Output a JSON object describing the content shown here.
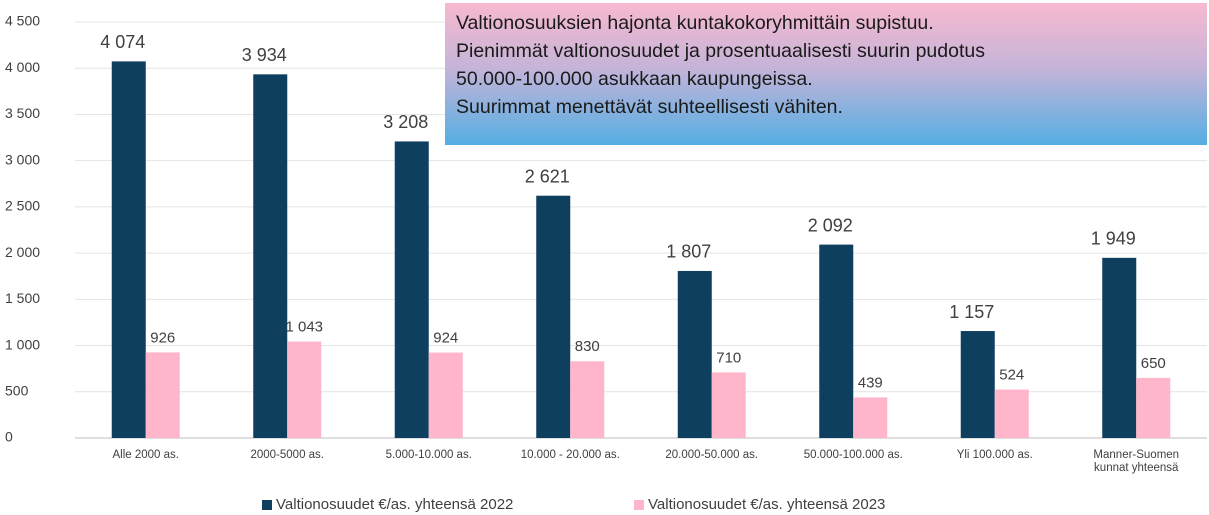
{
  "chart_data": {
    "type": "bar",
    "annotation": [
      "Valtionosuuksien hajonta kuntakokoryhmittäin supistuu.",
      "Pienimmät valtionosuudet ja prosentuaalisesti suurin pudotus",
      "50.000-100.000 asukkaan kaupungeissa.",
      "Suurimmat menettävät suhteellisesti vähiten."
    ],
    "categories": [
      "Alle 2000 as.",
      "2000-5000 as.",
      "5.000-10.000 as.",
      "10.000 - 20.000 as.",
      "20.000-50.000 as.",
      "50.000-100.000 as.",
      "Yli 100.000 as.",
      "Manner-Suomen kunnat yhteensä"
    ],
    "series": [
      {
        "name": "Valtionosuudet €/as. yhteensä 2022",
        "color": "#0f3f5e",
        "values": [
          4074,
          3934,
          3208,
          2621,
          1807,
          2092,
          1157,
          1949
        ],
        "value_labels": [
          "4 074",
          "3 934",
          "3 208",
          "2 621",
          "1 807",
          "2 092",
          "1 157",
          "1 949"
        ]
      },
      {
        "name": "Valtionosuudet €/as. yhteensä 2023",
        "color": "#ffb6cb",
        "values": [
          926,
          1043,
          924,
          830,
          710,
          439,
          524,
          650
        ],
        "value_labels": [
          "926",
          "1 043",
          "924",
          "830",
          "710",
          "439",
          "524",
          "650"
        ]
      }
    ],
    "ylim": [
      0,
      4500
    ],
    "yticks": [
      0,
      500,
      {
        "value": 1000,
        "label": "1 000"
      },
      {
        "value": 1500,
        "label": "1 500"
      },
      {
        "value": 2000,
        "label": "2 000"
      },
      {
        "value": 2500,
        "label": "2 500"
      },
      {
        "value": 3000,
        "label": "3 000"
      },
      {
        "value": 3500,
        "label": "3 500"
      },
      {
        "value": 4000,
        "label": "4 000"
      },
      {
        "value": 4500,
        "label": "4 500"
      }
    ],
    "grid": true,
    "legend": "bottom"
  }
}
